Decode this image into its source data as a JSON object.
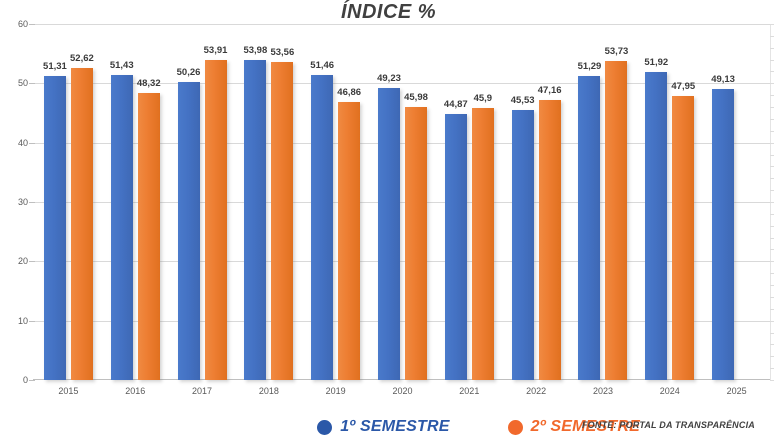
{
  "title": "ÍNDICE %",
  "source_note": "FONTE: PORTAL DA TRANSPARÊNCIA",
  "legend": {
    "items": [
      {
        "label": "1º SEMESTRE",
        "marker_color": "#2b58a8",
        "text_color": "#2b58a8"
      },
      {
        "label": "2º SEMESTRE",
        "marker_color": "#f1692c",
        "text_color": "#f1692c"
      }
    ]
  },
  "colors": {
    "series1_bar": "#4472C4",
    "series2_bar": "#ED7D31",
    "gridline": "#d9d9d9",
    "axis_text": "#595959",
    "title_text": "#404040"
  },
  "chart_data": {
    "type": "bar",
    "title": "ÍNDICE %",
    "categories": [
      "2015",
      "2016",
      "2017",
      "2018",
      "2019",
      "2020",
      "2021",
      "2022",
      "2023",
      "2024",
      "2025"
    ],
    "series": [
      {
        "name": "1º SEMESTRE",
        "color": "#4472C4",
        "values": [
          51.31,
          51.43,
          50.26,
          53.98,
          51.46,
          49.23,
          44.87,
          45.53,
          51.29,
          51.92,
          49.13
        ]
      },
      {
        "name": "2º SEMESTRE",
        "color": "#ED7D31",
        "values": [
          52.62,
          48.32,
          53.91,
          53.56,
          46.86,
          45.98,
          45.9,
          47.16,
          53.73,
          47.95,
          null
        ]
      }
    ],
    "xlabel": "",
    "ylabel": "",
    "ylim": [
      0,
      60
    ],
    "yticks": [
      0,
      10,
      20,
      30,
      40,
      50,
      60
    ],
    "grid": true,
    "value_labels": true,
    "decimal_separator": ",",
    "legend_position": "bottom",
    "source": "FONTE: PORTAL DA TRANSPARÊNCIA"
  }
}
